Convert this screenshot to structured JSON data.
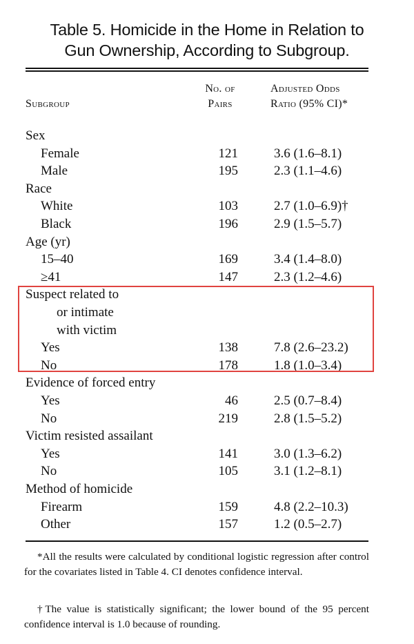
{
  "title": {
    "line1": "Table 5. Homicide in the Home in Relation to",
    "line2": "Gun Ownership, According to Subgroup."
  },
  "headers": {
    "subgroup": "Subgroup",
    "pairs_line1": "No. of",
    "pairs_line2": "Pairs",
    "odds_line1": "Adjusted Odds",
    "odds_line2": "Ratio (95% CI)*"
  },
  "rows": [
    {
      "label": "Sex",
      "pairs": "",
      "odds": ""
    },
    {
      "label": "Female",
      "pairs": "121",
      "odds": "3.6 (1.6–8.1)"
    },
    {
      "label": "Male",
      "pairs": "195",
      "odds": "2.3 (1.1–4.6)"
    },
    {
      "label": "Race",
      "pairs": "",
      "odds": ""
    },
    {
      "label": "White",
      "pairs": "103",
      "odds": "2.7 (1.0–6.9)†"
    },
    {
      "label": "Black",
      "pairs": "196",
      "odds": "2.9 (1.5–5.7)"
    },
    {
      "label": "Age (yr)",
      "pairs": "",
      "odds": ""
    },
    {
      "label": "15–40",
      "pairs": "169",
      "odds": "3.4 (1.4–8.0)"
    },
    {
      "label": "≥41",
      "pairs": "147",
      "odds": "2.3 (1.2–4.6)"
    },
    {
      "label": "Suspect related to",
      "pairs": "",
      "odds": ""
    },
    {
      "label": "or intimate",
      "pairs": "",
      "odds": ""
    },
    {
      "label": "with victim",
      "pairs": "",
      "odds": ""
    },
    {
      "label": "Yes",
      "pairs": "138",
      "odds": "7.8 (2.6–23.2)"
    },
    {
      "label": "No",
      "pairs": "178",
      "odds": "1.8 (1.0–3.4)"
    },
    {
      "label": "Evidence of forced entry",
      "pairs": "",
      "odds": ""
    },
    {
      "label": "Yes",
      "pairs": "46",
      "odds": "2.5 (0.7–8.4)"
    },
    {
      "label": "No",
      "pairs": "219",
      "odds": "2.8 (1.5–5.2)"
    },
    {
      "label": "Victim resisted assailant",
      "pairs": "",
      "odds": ""
    },
    {
      "label": "Yes",
      "pairs": "141",
      "odds": "3.0 (1.3–6.2)"
    },
    {
      "label": "No",
      "pairs": "105",
      "odds": "3.1 (1.2–8.1)"
    },
    {
      "label": "Method of homicide",
      "pairs": "",
      "odds": ""
    },
    {
      "label": "Firearm",
      "pairs": "159",
      "odds": "4.8 (2.2–10.3)"
    },
    {
      "label": "Other",
      "pairs": "157",
      "odds": "1.2 (0.5–2.7)"
    }
  ],
  "footnotes": {
    "star": "*All the results were calculated by conditional logistic regression after control for the covariates listed in Table 4. CI denotes confidence interval.",
    "dagger": "†The value is statistically significant; the lower bound of the 95 percent confidence interval is 1.0 because of rounding."
  },
  "colors": {
    "highlight_border": "#e0433f"
  }
}
